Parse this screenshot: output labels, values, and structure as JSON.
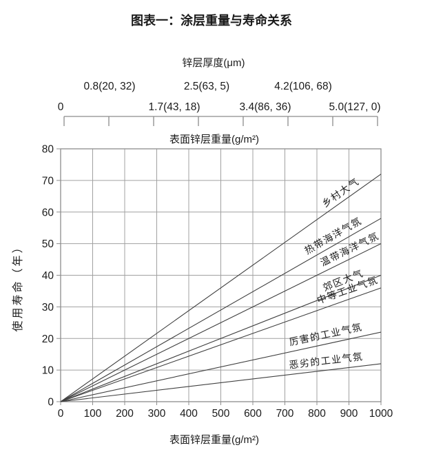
{
  "chart_data": {
    "type": "line",
    "title": "图表一：涂层重量与寿命关系",
    "xlabel": "表面锌层重量(g/m²)",
    "ylabel": "使用寿命（年）",
    "xlim": [
      0,
      1000
    ],
    "ylim": [
      0,
      80
    ],
    "xticks": [
      0,
      100,
      200,
      300,
      400,
      500,
      600,
      700,
      800,
      900,
      1000
    ],
    "yticks": [
      0,
      10,
      20,
      30,
      40,
      50,
      60,
      70,
      80
    ],
    "grid": true,
    "legend_position": "inline-labels-on-lines",
    "series": [
      {
        "name": "乡村大气",
        "x": [
          0,
          1000
        ],
        "y": [
          0,
          72
        ],
        "label_x": 880
      },
      {
        "name": "热带海洋气氛",
        "x": [
          0,
          1000
        ],
        "y": [
          0,
          58
        ],
        "label_x": 856
      },
      {
        "name": "温带海洋气氛",
        "x": [
          0,
          1000
        ],
        "y": [
          0,
          50
        ],
        "label_x": 907
      },
      {
        "name": "郊区大气",
        "x": [
          0,
          1000
        ],
        "y": [
          0,
          40
        ],
        "label_x": 886
      },
      {
        "name": "中等工业气氛",
        "x": [
          0,
          1000
        ],
        "y": [
          0,
          36
        ],
        "label_x": 899
      },
      {
        "name": "厉害的工业气氛",
        "x": [
          0,
          1000
        ],
        "y": [
          0,
          22
        ],
        "label_x": 830
      },
      {
        "name": "恶劣的工业气氛",
        "x": [
          0,
          1000
        ],
        "y": [
          0,
          12
        ],
        "label_x": 830
      }
    ],
    "top_scale": {
      "title": "锌层厚度(μm)",
      "subtitle": "表面锌层重量(g/m²)",
      "tick_count": 8,
      "labels_upper": [
        "0.8(20, 32)",
        "2.5(63, 5)",
        "4.2(106, 68)"
      ],
      "labels_lower": [
        "0",
        "1.7(43, 18)",
        "3.4(86, 36)",
        "5.0(127, 0)"
      ]
    }
  },
  "colors": {
    "series_line": "#3f3f3f",
    "series_label": "#333333",
    "grid": "#a0a0a0",
    "border": "#8c8c8c",
    "scale_line": "#8c8c8c",
    "text": "#1a1a1a"
  }
}
